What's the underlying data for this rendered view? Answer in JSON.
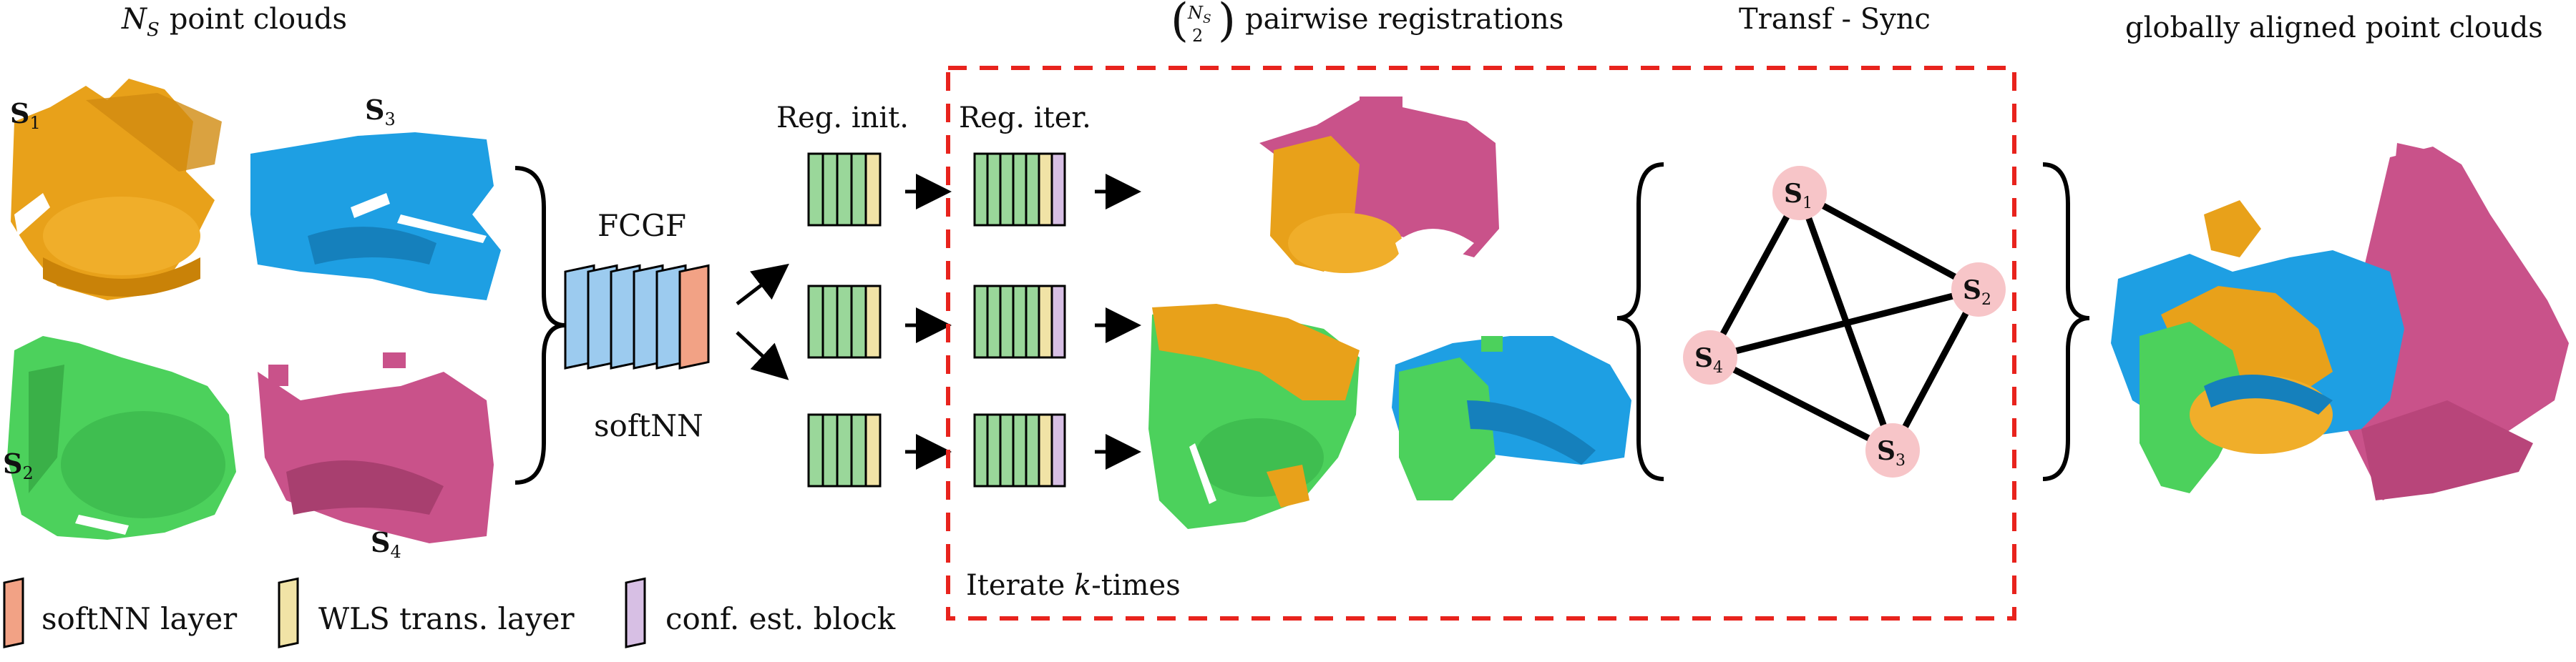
{
  "headers": {
    "point_clouds_var": "N",
    "point_clouds_sub": "S",
    "point_clouds_rest": "point clouds",
    "pairwise_binom_top": "N",
    "pairwise_binom_top_sub": "S",
    "pairwise_binom_bottom": "2",
    "pairwise": "pairwise registrations",
    "sync": "Transf - Sync",
    "global": "globally aligned point clouds"
  },
  "clouds": [
    {
      "name": "S",
      "sub": "1",
      "color": "#E8A11A"
    },
    {
      "name": "S",
      "sub": "3",
      "color": "#1E9FE3"
    },
    {
      "name": "S",
      "sub": "2",
      "color": "#4CD15C"
    },
    {
      "name": "S",
      "sub": "4",
      "color": "#C9528A"
    }
  ],
  "network": {
    "fcgf": "FCGF",
    "softnn": "softNN",
    "reg_init": "Reg. init.",
    "reg_iter": "Reg. iter.",
    "iterate_prefix": "Iterate ",
    "iterate_k": "k",
    "iterate_suffix": "-times"
  },
  "graph": {
    "nodes": [
      {
        "name": "S",
        "sub": "1"
      },
      {
        "name": "S",
        "sub": "2"
      },
      {
        "name": "S",
        "sub": "3"
      },
      {
        "name": "S",
        "sub": "4"
      }
    ],
    "node_color": "#F7C5C8"
  },
  "legend": [
    {
      "label": "softNN layer",
      "color": "#F2A285"
    },
    {
      "label": "WLS trans. layer",
      "color": "#F1E3A6"
    },
    {
      "label": "conf. est. block",
      "color": "#D7BFE4"
    }
  ],
  "colors": {
    "dashed_box": "#E8231D",
    "blue_block": "#9CCBEF",
    "green_block": "#9AD79A",
    "orange": "#E8A11A",
    "blue": "#1E9FE3",
    "green": "#4CD15C",
    "pink": "#C9528A"
  }
}
